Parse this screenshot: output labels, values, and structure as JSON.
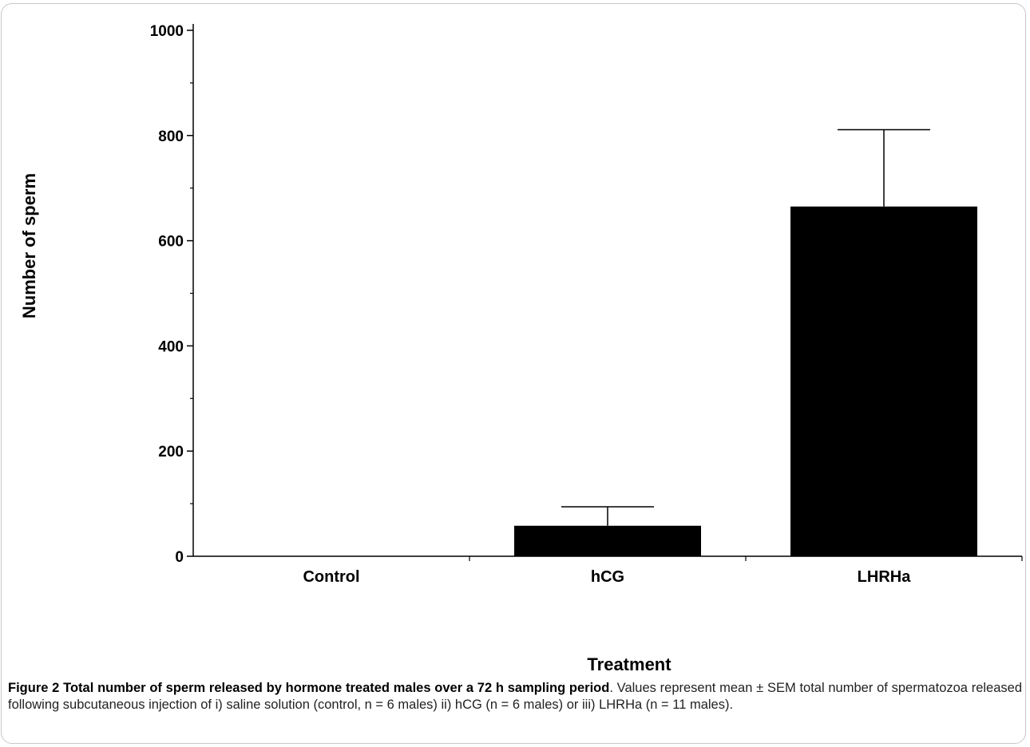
{
  "chart_data": {
    "type": "bar",
    "categories": [
      "Control",
      "hCG",
      "LHRHa"
    ],
    "values": [
      0,
      58,
      665
    ],
    "error_plus": [
      0,
      36,
      146
    ],
    "xlabel": "Treatment",
    "ylabel": "Number of sperm",
    "ylim": [
      0,
      1000
    ],
    "yticks": [
      0,
      200,
      400,
      600,
      800,
      1000
    ],
    "yticks_minor": [
      100,
      300,
      500,
      700,
      900
    ],
    "grid": false,
    "bar_color": "#000000"
  },
  "caption": {
    "label": "Figure 2",
    "title": "Total number of sperm released by hormone treated males over a 72 h sampling period",
    "text": ". Values represent mean ± SEM total number of spermatozoa released following subcutaneous injection of i) saline solution (control, n = 6 males) ii) hCG (n = 6 males) or iii) LHRHa (n = 11 males)."
  }
}
